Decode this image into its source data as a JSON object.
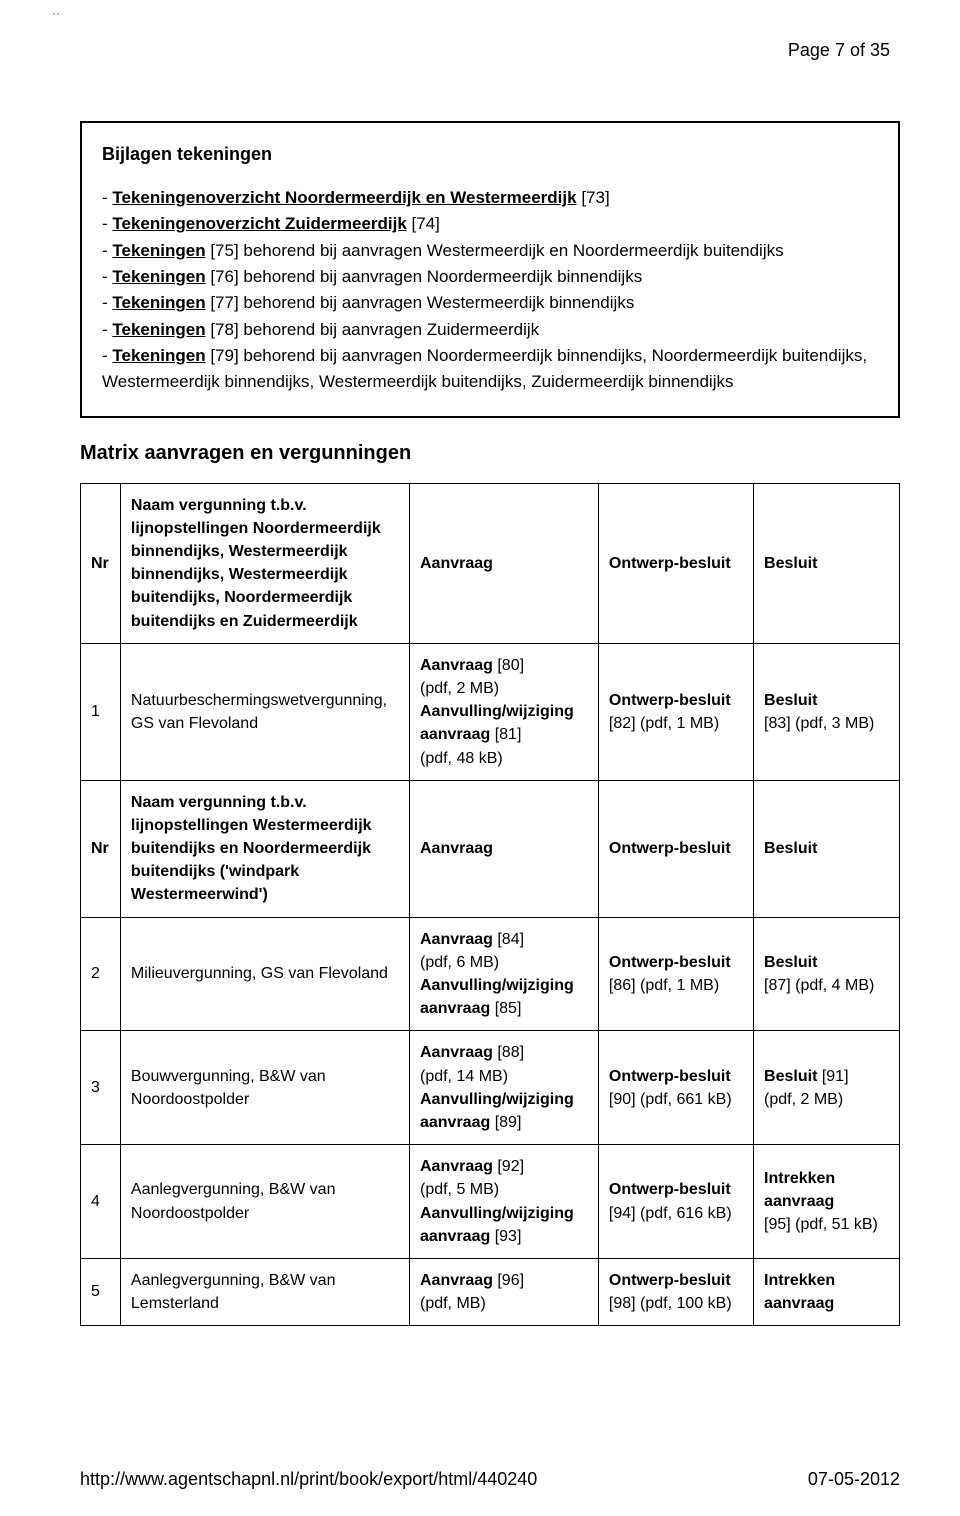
{
  "pageNumber": "Page 7 of 35",
  "tickMark": "··",
  "bijlagen": {
    "title": "Bijlagen tekeningen",
    "items": [
      {
        "prefix": "- ",
        "link": "Tekeningenoverzicht Noordermeerdijk en Westermeerdijk",
        "suffix": " [73]"
      },
      {
        "prefix": "- ",
        "link": "Tekeningenoverzicht Zuidermeerdijk",
        "suffix": " [74]"
      },
      {
        "prefix": "- ",
        "link": "Tekeningen",
        "suffix": " [75] behorend bij aanvragen Westermeerdijk en Noordermeerdijk buitendijks"
      },
      {
        "prefix": "- ",
        "link": "Tekeningen",
        "suffix": " [76] behorend bij aanvragen Noordermeerdijk binnendijks"
      },
      {
        "prefix": "- ",
        "link": "Tekeningen",
        "suffix": " [77] behorend bij aanvragen Westermeerdijk binnendijks"
      },
      {
        "prefix": "- ",
        "link": "Tekeningen",
        "suffix": " [78] behorend bij aanvragen Zuidermeerdijk"
      },
      {
        "prefix": "- ",
        "link": "Tekeningen",
        "suffix": " [79] behorend bij aanvragen Noordermeerdijk binnendijks, Noordermeerdijk buitendijks, Westermeerdijk binnendijks, Westermeerdijk buitendijks, Zuidermeerdijk binnendijks"
      }
    ]
  },
  "sectionTitle": "Matrix aanvragen en vergunningen",
  "headers1": {
    "nr": "Nr",
    "name": "Naam vergunning t.b.v. lijnopstellingen Noordermeerdijk binnendijks, Westermeerdijk binnendijks, Westermeerdijk buitendijks, Noordermeerdijk buitendijks en Zuidermeerdijk",
    "aanvraag": "Aanvraag",
    "ontwerp": "Ontwerp-besluit",
    "besluit": "Besluit"
  },
  "headers2": {
    "nr": "Nr",
    "name": "Naam vergunning t.b.v. lijnopstellingen Westermeerdijk buitendijks en Noordermeerdijk buitendijks ('windpark Westermeerwind')",
    "aanvraag": "Aanvraag",
    "ontwerp": "Ontwerp-besluit",
    "besluit": "Besluit"
  },
  "rows": [
    {
      "nr": "1",
      "name": "Natuurbeschermingswetvergunning, GS van Flevoland",
      "aanvraag_l1a": "Aanvraag",
      "aanvraag_l1b": " [80]",
      "aanvraag_l2": "(pdf, 2 MB)",
      "aanvraag_l3a": "Aanvulling/wijziging aanvraag",
      "aanvraag_l3b": " [81]",
      "aanvraag_l4": "(pdf, 48 kB)",
      "ontwerp_l1a": "Ontwerp-besluit",
      "ontwerp_l2": "[82] (pdf, 1 MB)",
      "besluit_l1a": "Besluit",
      "besluit_l2": "[83] (pdf, 3 MB)"
    },
    {
      "nr": "2",
      "name": "Milieuvergunning, GS van Flevoland",
      "aanvraag_l1a": "Aanvraag",
      "aanvraag_l1b": " [84]",
      "aanvraag_l2": "(pdf, 6 MB)",
      "aanvraag_l3a": "Aanvulling/wijziging aanvraag",
      "aanvraag_l3b": " [85]",
      "aanvraag_l4": "",
      "ontwerp_l1a": "Ontwerp-besluit",
      "ontwerp_l2": "[86] (pdf, 1 MB)",
      "besluit_l1a": "Besluit",
      "besluit_l2": "[87] (pdf, 4 MB)"
    },
    {
      "nr": "3",
      "name": "Bouwvergunning, B&W van Noordoostpolder",
      "aanvraag_l1a": "Aanvraag",
      "aanvraag_l1b": " [88]",
      "aanvraag_l2": "(pdf, 14 MB)",
      "aanvraag_l3a": "Aanvulling/wijziging aanvraag",
      "aanvraag_l3b": " [89]",
      "aanvraag_l4": "",
      "ontwerp_l1a": "Ontwerp-besluit",
      "ontwerp_l2": "[90] (pdf, 661 kB)",
      "besluit_l1a": "Besluit",
      "besluit_l1b": " [91]",
      "besluit_l2": "(pdf, 2 MB)"
    },
    {
      "nr": "4",
      "name": "Aanlegvergunning, B&W van Noordoostpolder",
      "aanvraag_l1a": "Aanvraag",
      "aanvraag_l1b": " [92]",
      "aanvraag_l2": "(pdf, 5 MB)",
      "aanvraag_l3a": "Aanvulling/wijziging aanvraag",
      "aanvraag_l3b": " [93]",
      "aanvraag_l4": "",
      "ontwerp_l1a": "Ontwerp-besluit",
      "ontwerp_l2": "[94] (pdf, 616 kB)",
      "besluit_l1a": "Intrekken aanvraag",
      "besluit_l2": "[95] (pdf, 51 kB)"
    },
    {
      "nr": "5",
      "name": "Aanlegvergunning, B&W van Lemsterland",
      "aanvraag_l1a": "Aanvraag",
      "aanvraag_l1b": " [96]",
      "aanvraag_l2": "(pdf, MB)",
      "aanvraag_l3a": "",
      "aanvraag_l3b": "",
      "aanvraag_l4": "",
      "ontwerp_l1a": "Ontwerp-besluit",
      "ontwerp_l2": "[98] (pdf, 100 kB)",
      "besluit_l1a": "Intrekken aanvraag",
      "besluit_l2": ""
    }
  ],
  "footer": {
    "url": "http://www.agentschapnl.nl/print/book/export/html/440240",
    "date": "07-05-2012"
  }
}
